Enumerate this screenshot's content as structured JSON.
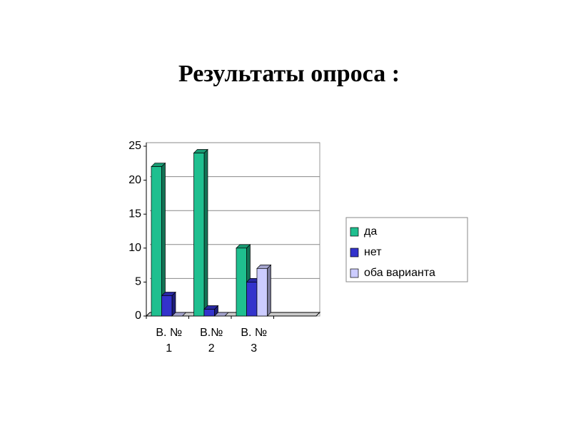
{
  "chart_data": {
    "type": "bar",
    "title": "Результаты опроса :",
    "categories": [
      "В. № 1",
      "В.№ 2",
      "В. № 3",
      null
    ],
    "series": [
      {
        "name": "да",
        "color": "#1fbf8f",
        "values": [
          22,
          24,
          10,
          null
        ]
      },
      {
        "name": "нет",
        "color": "#3333cc",
        "values": [
          3,
          1,
          5,
          null
        ]
      },
      {
        "name": "оба варианта",
        "color": "#ccccff",
        "values": [
          0,
          0,
          7,
          null
        ]
      }
    ],
    "ylim": [
      0,
      25
    ],
    "yticks": [
      0,
      5,
      10,
      15,
      20,
      25
    ],
    "grid": true,
    "legend": "right"
  }
}
